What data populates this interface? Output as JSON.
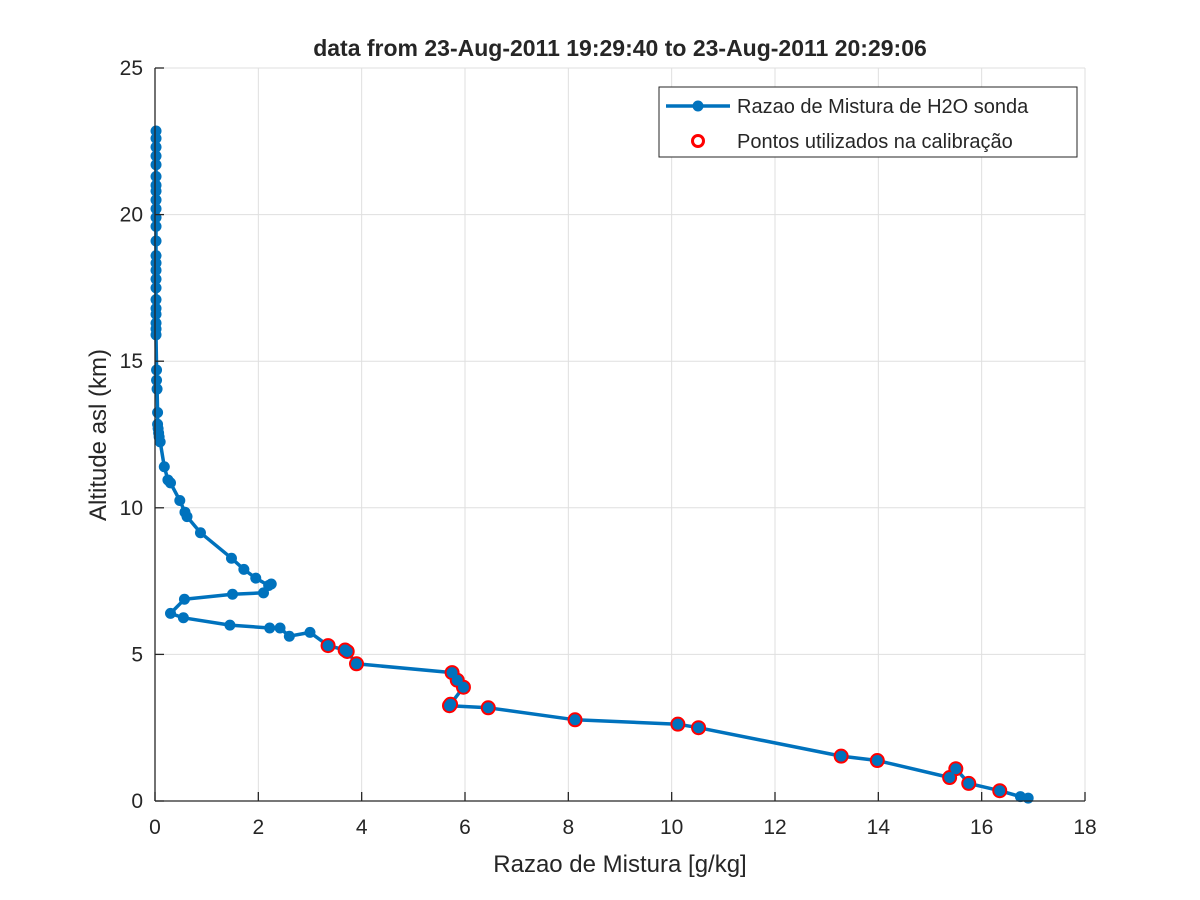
{
  "chart_data": {
    "type": "line",
    "title": "data from 23-Aug-2011 19:29:40 to 23-Aug-2011 20:29:06",
    "xlabel": "Razao de Mistura [g/kg]",
    "ylabel": "Altitude asl (km)",
    "xlim": [
      0,
      18
    ],
    "ylim": [
      0,
      25
    ],
    "xticks": [
      0,
      2,
      4,
      6,
      8,
      10,
      12,
      14,
      16,
      18
    ],
    "yticks": [
      0,
      5,
      10,
      15,
      20,
      25
    ],
    "grid": true,
    "legend_position": "top-right",
    "colors": {
      "series": "#0072bd",
      "calibration": "#ff0000",
      "grid": "#dfdfdf",
      "axis": "#262626"
    },
    "series": [
      {
        "name": "Razao de Mistura de H2O sonda",
        "style": "line-with-dots",
        "x": [
          16.9,
          16.75,
          16.35,
          15.75,
          15.5,
          15.38,
          13.98,
          13.28,
          10.52,
          10.12,
          8.13,
          6.45,
          5.7,
          5.72,
          5.97,
          5.85,
          5.75,
          3.9,
          3.72,
          3.68,
          3.35,
          3.0,
          2.6,
          2.42,
          2.22,
          1.45,
          0.55,
          0.3,
          0.57,
          1.5,
          2.1,
          2.25,
          2.2,
          1.95,
          1.72,
          1.48,
          0.88,
          0.62,
          0.58,
          0.48,
          0.3,
          0.25,
          0.18,
          0.1,
          0.08,
          0.07,
          0.06,
          0.05,
          0.05,
          0.04,
          0.03,
          0.03,
          0.02,
          0.02,
          0.02,
          0.02,
          0.02,
          0.02,
          0.02,
          0.02,
          0.02,
          0.02,
          0.02,
          0.02,
          0.02,
          0.02,
          0.02,
          0.02,
          0.02,
          0.02,
          0.02,
          0.02,
          0.02,
          0.02,
          0.02,
          0.02
        ],
        "y": [
          0.1,
          0.15,
          0.35,
          0.6,
          1.1,
          0.8,
          1.38,
          1.53,
          2.5,
          2.62,
          2.77,
          3.18,
          3.25,
          3.3,
          3.88,
          4.12,
          4.38,
          4.68,
          5.1,
          5.15,
          5.3,
          5.75,
          5.62,
          5.9,
          5.9,
          6.0,
          6.25,
          6.4,
          6.88,
          7.05,
          7.1,
          7.4,
          7.35,
          7.6,
          7.9,
          8.28,
          9.15,
          9.7,
          9.85,
          10.25,
          10.85,
          10.95,
          11.4,
          12.25,
          12.42,
          12.55,
          12.7,
          12.85,
          13.25,
          14.05,
          14.35,
          14.7,
          15.9,
          16.1,
          16.3,
          16.6,
          16.8,
          17.1,
          17.5,
          17.8,
          18.1,
          18.35,
          18.6,
          19.1,
          19.6,
          19.9,
          20.2,
          20.5,
          20.8,
          21.0,
          21.3,
          21.7,
          22.0,
          22.3,
          22.6,
          22.85
        ]
      },
      {
        "name": "Pontos utilizados na calibração",
        "style": "open-circles",
        "x": [
          16.35,
          15.75,
          15.5,
          15.38,
          13.98,
          13.28,
          10.52,
          10.12,
          8.13,
          6.45,
          5.7,
          5.72,
          5.97,
          5.85,
          5.75,
          3.9,
          3.72,
          3.68,
          3.35
        ],
        "y": [
          0.35,
          0.6,
          1.1,
          0.8,
          1.38,
          1.53,
          2.5,
          2.62,
          2.77,
          3.18,
          3.25,
          3.3,
          3.88,
          4.12,
          4.38,
          4.68,
          5.1,
          5.15,
          5.3
        ]
      }
    ]
  }
}
